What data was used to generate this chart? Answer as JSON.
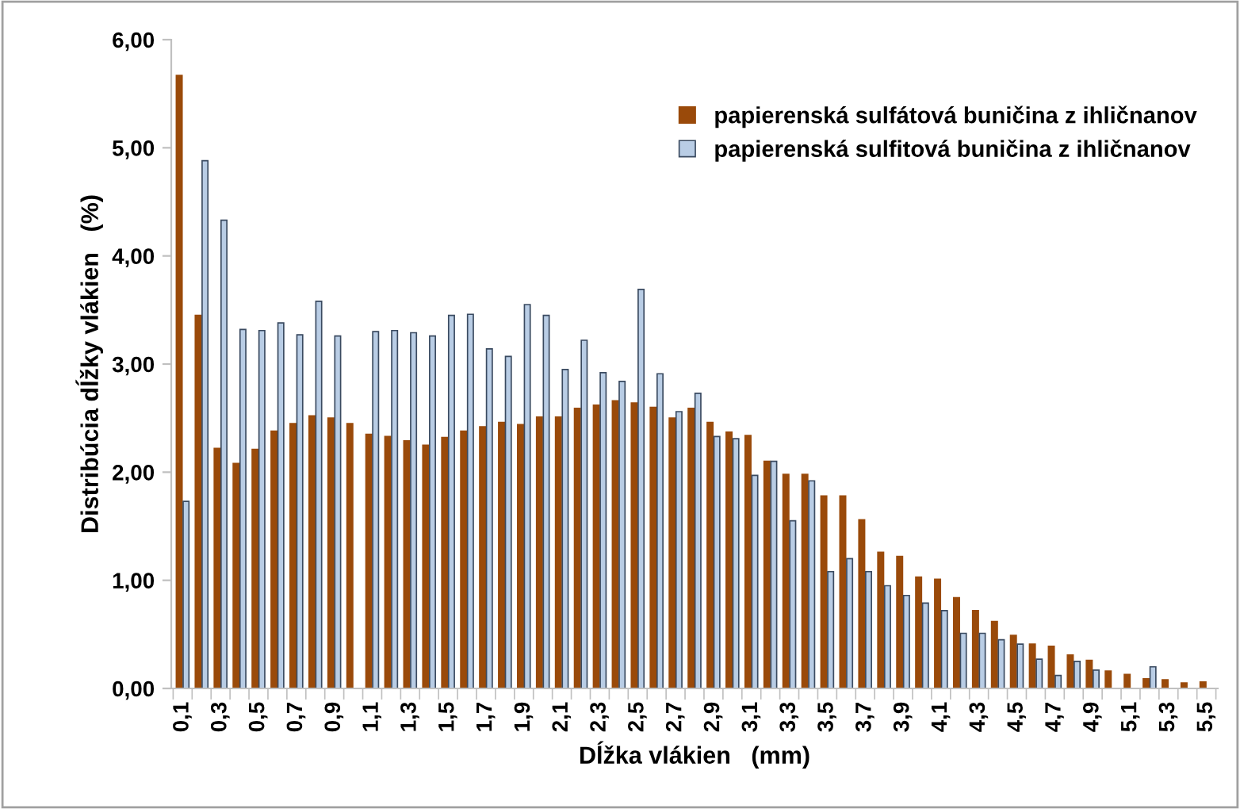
{
  "chart_data": {
    "type": "bar",
    "xlabel": "Dĺžka vlákien   (mm)",
    "ylabel": "Distribúcia dĺžky vlákien   (%)",
    "categories": [
      "0,1",
      null,
      "0,3",
      null,
      "0,5",
      null,
      "0,7",
      null,
      "0,9",
      null,
      "1,1",
      null,
      "1,3",
      null,
      "1,5",
      null,
      "1,7",
      null,
      "1,9",
      null,
      "2,1",
      null,
      "2,3",
      null,
      "2,5",
      null,
      "2,7",
      null,
      "2,9",
      null,
      "3,1",
      null,
      "3,3",
      null,
      "3,5",
      null,
      "3,7",
      null,
      "3,9",
      null,
      "4,1",
      null,
      "4,3",
      null,
      "4,5",
      null,
      "4,7",
      null,
      "4,9",
      null,
      "5,1",
      null,
      "5,3",
      null,
      "5,5"
    ],
    "series": [
      {
        "name": "papierenská sulfátová buničina z ihličnanov",
        "color": "#9a4a0a",
        "values": [
          5.67,
          3.45,
          2.22,
          2.08,
          2.21,
          2.38,
          2.45,
          2.52,
          2.5,
          2.45,
          2.35,
          2.33,
          2.29,
          2.25,
          2.32,
          2.38,
          2.42,
          2.46,
          2.44,
          2.51,
          2.51,
          2.59,
          2.62,
          2.66,
          2.64,
          2.6,
          2.5,
          2.59,
          2.46,
          2.37,
          2.34,
          2.1,
          1.98,
          1.98,
          1.78,
          1.78,
          1.56,
          1.26,
          1.22,
          1.03,
          1.01,
          0.84,
          0.72,
          0.62,
          0.49,
          0.41,
          0.39,
          0.31,
          0.26,
          0.16,
          0.13,
          0.09,
          0.08,
          0.05,
          0.06
        ]
      },
      {
        "name": "papierenská sulfitová buničina z ihličnanov",
        "color": "#b9cde5",
        "values": [
          1.73,
          4.88,
          4.33,
          3.32,
          3.31,
          3.38,
          3.27,
          3.58,
          3.26,
          null,
          3.3,
          3.31,
          3.29,
          3.26,
          3.45,
          3.46,
          3.14,
          3.07,
          3.55,
          3.45,
          2.95,
          3.22,
          2.92,
          2.84,
          3.69,
          2.91,
          2.56,
          2.73,
          2.33,
          2.31,
          1.97,
          2.1,
          1.55,
          1.92,
          1.08,
          1.2,
          1.08,
          0.95,
          0.86,
          0.79,
          0.72,
          0.51,
          0.51,
          0.45,
          0.41,
          0.27,
          0.12,
          0.25,
          0.17,
          null,
          null,
          0.2,
          null,
          null,
          null
        ]
      }
    ],
    "ylim": [
      0,
      6
    ],
    "yticks": [
      {
        "value": 0,
        "label": "0,00"
      },
      {
        "value": 1,
        "label": "1,00"
      },
      {
        "value": 2,
        "label": "2,00"
      },
      {
        "value": 3,
        "label": "3,00"
      },
      {
        "value": 4,
        "label": "4,00"
      },
      {
        "value": 5,
        "label": "5,00"
      },
      {
        "value": 6,
        "label": "6,00"
      }
    ],
    "legend": "top right",
    "grid": false
  }
}
